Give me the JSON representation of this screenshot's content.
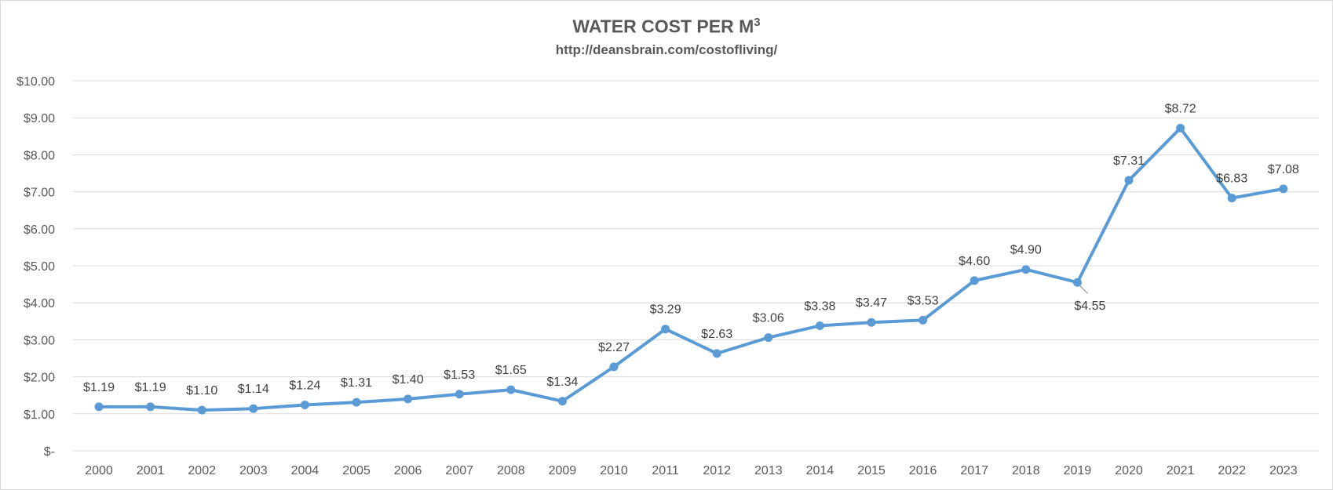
{
  "chart_data": {
    "type": "line",
    "title_main": "WATER COST PER M",
    "title_sup": "3",
    "subtitle": "http://deansbrain.com/costofliving/",
    "categories": [
      "2000",
      "2001",
      "2002",
      "2003",
      "2004",
      "2005",
      "2006",
      "2007",
      "2008",
      "2009",
      "2010",
      "2011",
      "2012",
      "2013",
      "2014",
      "2015",
      "2016",
      "2017",
      "2018",
      "2019",
      "2020",
      "2021",
      "2022",
      "2023"
    ],
    "series": [
      {
        "values": [
          1.19,
          1.19,
          1.1,
          1.14,
          1.24,
          1.31,
          1.4,
          1.53,
          1.65,
          1.34,
          2.27,
          3.29,
          2.63,
          3.06,
          3.38,
          3.47,
          3.53,
          4.6,
          4.9,
          4.55,
          7.31,
          8.72,
          6.83,
          7.08
        ],
        "labels": [
          "$1.19",
          "$1.19",
          "$1.10",
          "$1.14",
          "$1.24",
          "$1.31",
          "$1.40",
          "$1.53",
          "$1.65",
          "$1.34",
          "$2.27",
          "$3.29",
          "$2.63",
          "$3.06",
          "$3.38",
          "$3.47",
          "$3.53",
          "$4.60",
          "$4.90",
          "$4.55",
          "$7.31",
          "$8.72",
          "$6.83",
          "$7.08"
        ],
        "color": "#5b9bd5"
      }
    ],
    "ylim": [
      0,
      10
    ],
    "yticks": [
      0,
      1,
      2,
      3,
      4,
      5,
      6,
      7,
      8,
      9,
      10
    ],
    "ytick_labels": [
      "$-",
      "$1.00",
      "$2.00",
      "$3.00",
      "$4.00",
      "$5.00",
      "$6.00",
      "$7.00",
      "$8.00",
      "$9.00",
      "$10.00"
    ],
    "grid": true,
    "legend": "none",
    "gridline_color": "#d9d9d9",
    "label_color": "#404040",
    "axis_text_color": "#595959"
  }
}
